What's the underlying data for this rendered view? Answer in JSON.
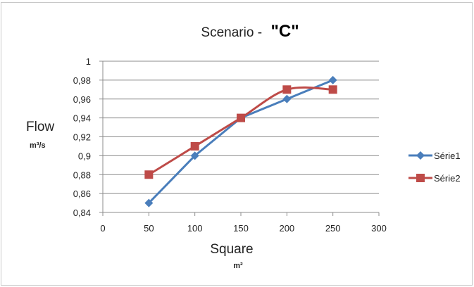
{
  "chart_data": {
    "type": "line",
    "title_prefix": "Scenario -",
    "title_emphasis": "\"C\"",
    "ylabel": "Flow",
    "ylabel_unit": "m³/s",
    "xlabel": "Square",
    "xlabel_unit": "m²",
    "xlim": [
      0,
      300
    ],
    "ylim": [
      0.84,
      1.0
    ],
    "x_ticks": [
      0,
      50,
      100,
      150,
      200,
      250,
      300
    ],
    "x_tick_labels": [
      "0",
      "50",
      "100",
      "150",
      "200",
      "250",
      "300"
    ],
    "y_ticks": [
      0.84,
      0.86,
      0.88,
      0.9,
      0.92,
      0.94,
      0.96,
      0.98,
      1.0
    ],
    "y_tick_labels": [
      "0,84",
      "0,86",
      "0,88",
      "0,9",
      "0,92",
      "0,94",
      "0,96",
      "0,98",
      "1"
    ],
    "grid": "horizontal",
    "legend_position": "right",
    "series": [
      {
        "name": "Série1",
        "color": "#4a7ebb",
        "marker": "diamond",
        "smooth": false,
        "x": [
          50,
          100,
          150,
          200,
          250
        ],
        "y": [
          0.85,
          0.9,
          0.94,
          0.96,
          0.98
        ]
      },
      {
        "name": "Série2",
        "color": "#be4b48",
        "marker": "square",
        "smooth": true,
        "x": [
          50,
          100,
          150,
          200,
          250
        ],
        "y": [
          0.88,
          0.91,
          0.94,
          0.97,
          0.97
        ]
      }
    ]
  }
}
